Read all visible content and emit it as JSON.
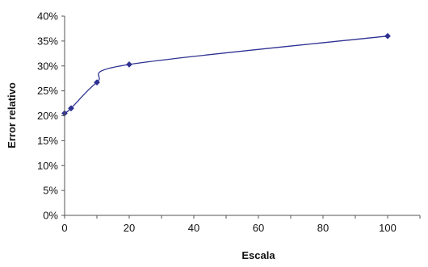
{
  "chart_data": {
    "type": "line",
    "title": "",
    "xlabel": "Escala",
    "ylabel": "Error relativo",
    "xlim": [
      0,
      110
    ],
    "ylim": [
      0,
      0.4
    ],
    "x_ticks": [
      0,
      20,
      40,
      60,
      80,
      100
    ],
    "x_tick_labels": [
      "0",
      "20",
      "40",
      "60",
      "80",
      "100"
    ],
    "y_ticks": [
      0,
      0.05,
      0.1,
      0.15,
      0.2,
      0.25,
      0.3,
      0.35,
      0.4
    ],
    "y_tick_labels": [
      "0%",
      "5%",
      "10%",
      "15%",
      "20%",
      "25%",
      "30%",
      "35%",
      "40%"
    ],
    "grid": false,
    "legend": "none",
    "series": [
      {
        "color": "#2e3192",
        "marker": "diamond",
        "smooth": true,
        "points": [
          {
            "x": 0,
            "y": 0.205
          },
          {
            "x": 2,
            "y": 0.215
          },
          {
            "x": 10,
            "y": 0.267
          },
          {
            "x": 20,
            "y": 0.303
          },
          {
            "x": 100,
            "y": 0.36
          }
        ]
      }
    ]
  }
}
